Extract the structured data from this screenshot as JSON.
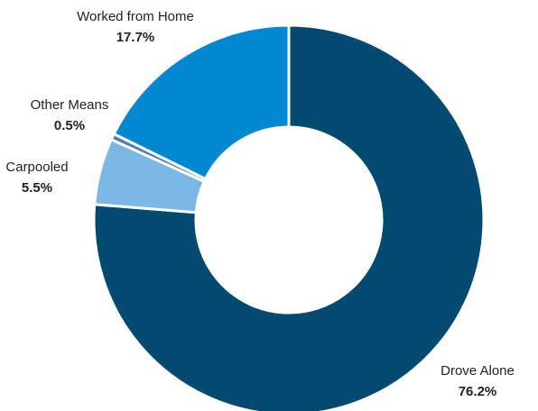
{
  "chart_data": {
    "type": "pie",
    "donut": true,
    "legend": "none",
    "slices": [
      {
        "label": "Drove Alone",
        "value": 76.2,
        "display": "76.2%",
        "color": "#024a70"
      },
      {
        "label": "Carpooled",
        "value": 5.5,
        "display": "5.5%",
        "color": "#7bb8e6"
      },
      {
        "label": "Other Means",
        "value": 0.5,
        "display": "0.5%",
        "color": "#4a7fa8"
      },
      {
        "label": "Worked from Home",
        "value": 17.7,
        "display": "17.7%",
        "color": "#0188d0"
      }
    ]
  }
}
